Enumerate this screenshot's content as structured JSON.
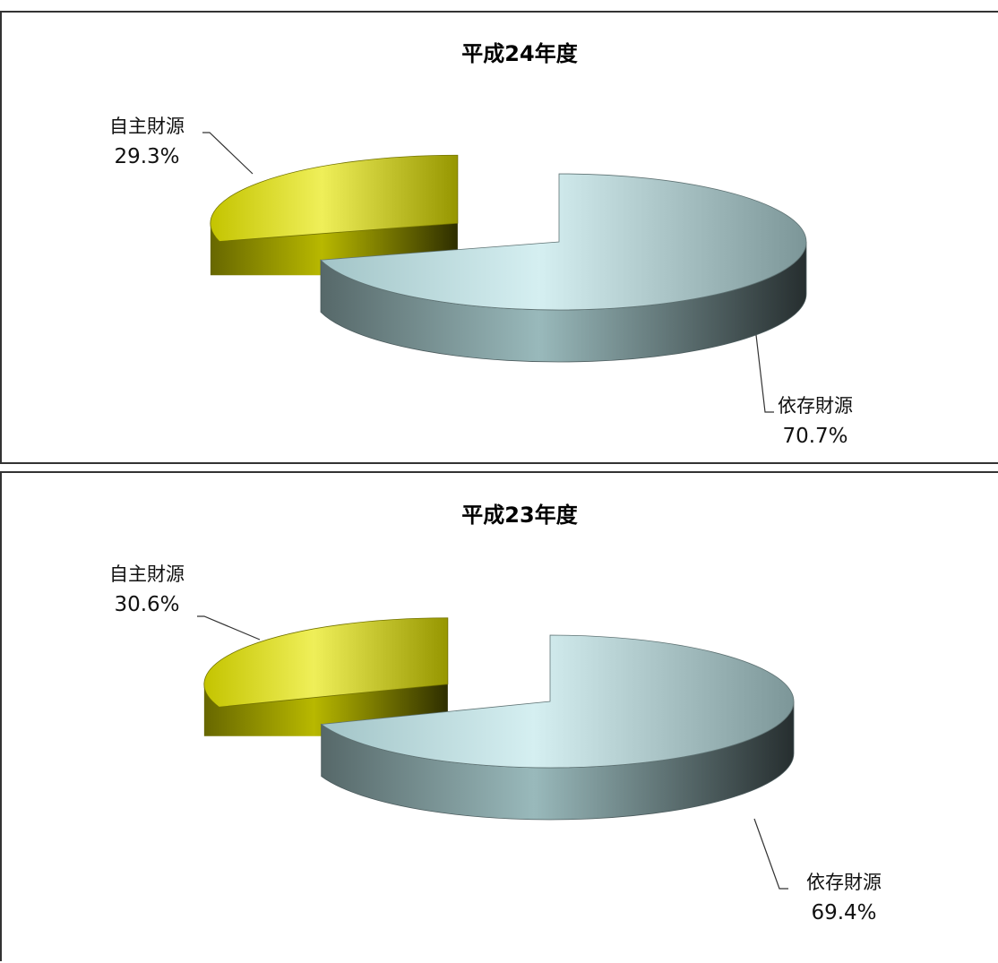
{
  "chart_data": [
    {
      "type": "pie",
      "title": "平成24年度",
      "categories": [
        "自主財源",
        "依存財源"
      ],
      "values": [
        29.3,
        70.7
      ],
      "labels": [
        "29.3%",
        "70.7%"
      ],
      "colors": [
        "#e6e600",
        "#bfe7ea"
      ],
      "exploded": [
        true,
        false
      ],
      "style": "3d"
    },
    {
      "type": "pie",
      "title": "平成23年度",
      "categories": [
        "自主財源",
        "依存財源"
      ],
      "values": [
        30.6,
        69.4
      ],
      "labels": [
        "30.6%",
        "69.4%"
      ],
      "colors": [
        "#e6e600",
        "#bfe7ea"
      ],
      "exploded": [
        true,
        false
      ],
      "style": "3d"
    }
  ]
}
